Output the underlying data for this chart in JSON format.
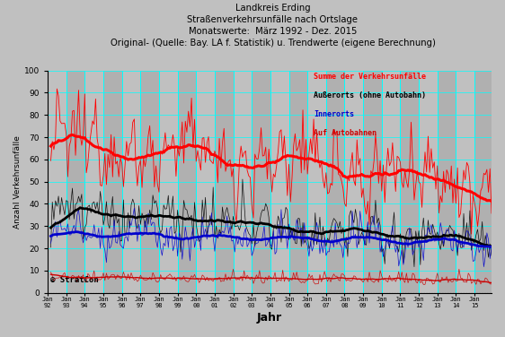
{
  "title_lines": [
    "Landkreis Erding",
    "Straßenverkehrsunfälle nach Ortslage",
    "Monatswerte:  März 1992 - Dez. 2015",
    "Original- (Quelle: Bay. LA f. Statistik) u. Trendwerte (eigene Berechnung)"
  ],
  "xlabel": "Jahr",
  "ylabel": "Anzahl Verkehrsunfälle",
  "ylim": [
    0,
    100
  ],
  "yticks": [
    0,
    10,
    20,
    30,
    40,
    50,
    60,
    70,
    80,
    90,
    100
  ],
  "bg_color": "#c0c0c0",
  "plot_bg_color": "#c0c0c0",
  "grid_color": "#00ffff",
  "legend_labels": [
    "Summe der Verkehrsunfälle",
    "Außerorts (ohne Autobahn)",
    "Innerorts",
    "Auf Autobahnen"
  ],
  "legend_colors": [
    "#ff0000",
    "#000000",
    "#0000cc",
    "#cc0000"
  ],
  "watermark": "© StratCon",
  "start_year": 1992,
  "start_month": 3,
  "n_months": 286,
  "seed": 12345
}
